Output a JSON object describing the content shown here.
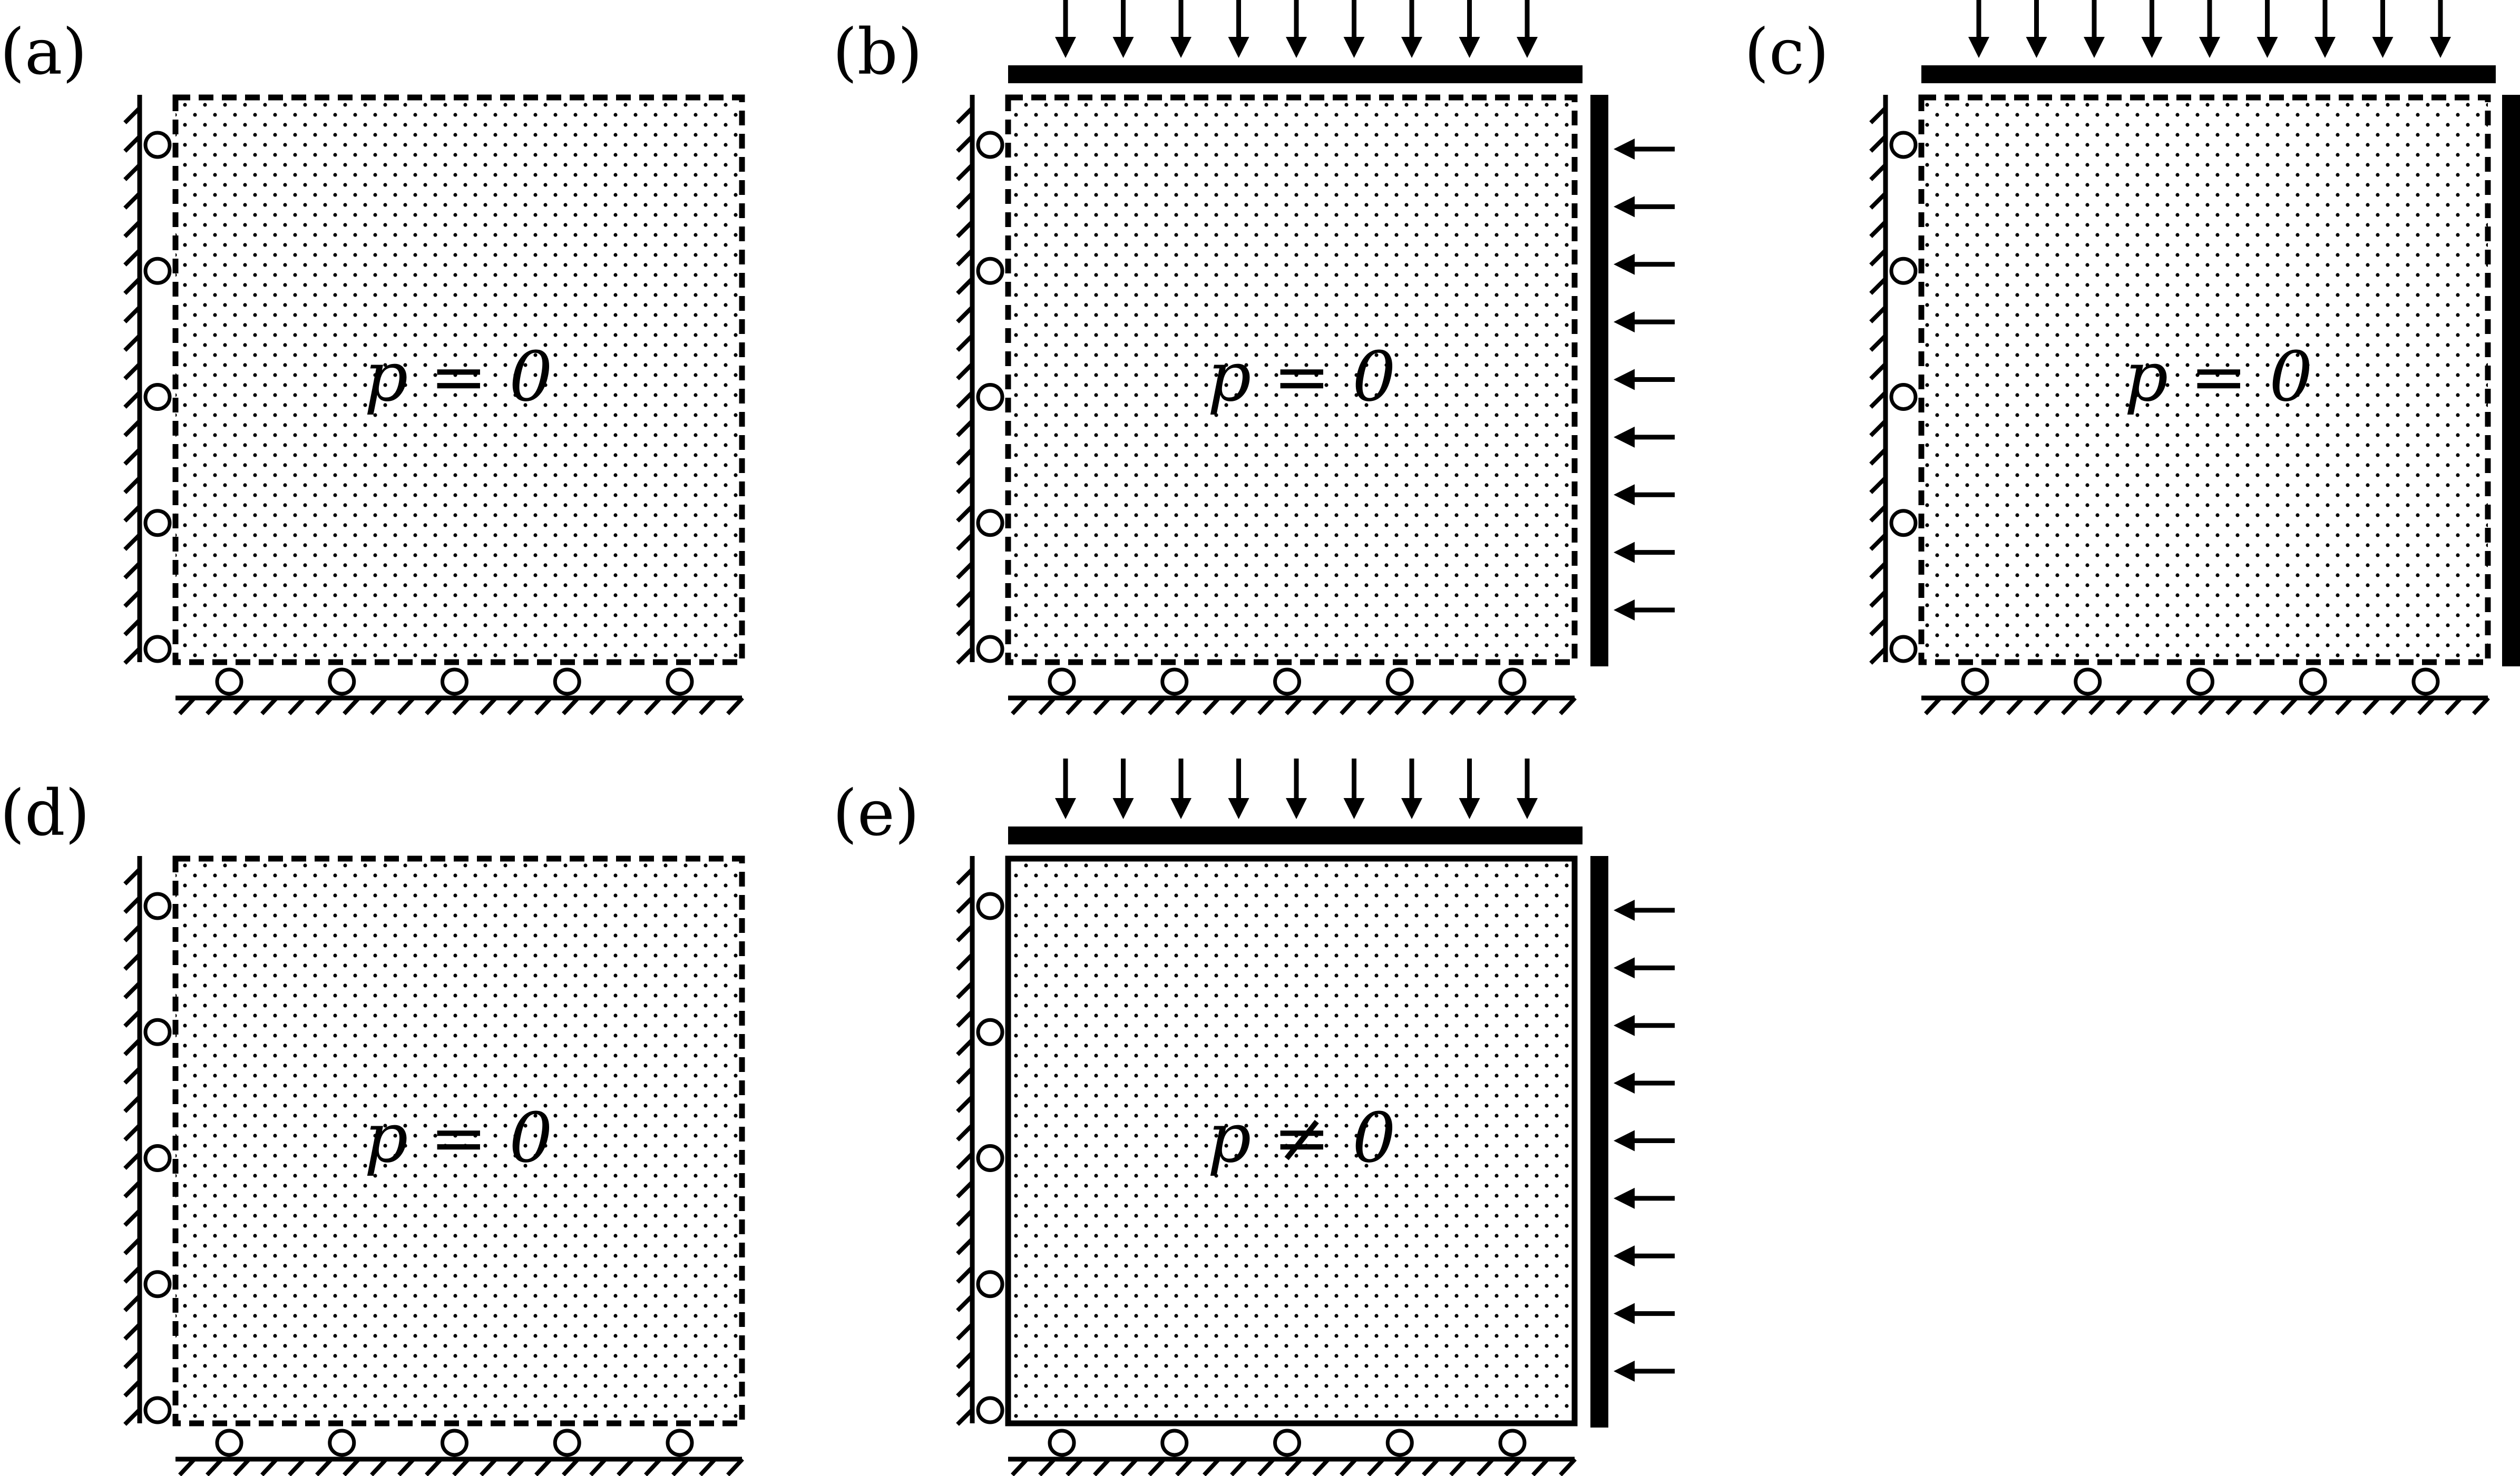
{
  "figure": {
    "panels": [
      {
        "id": "a",
        "label": "(a)",
        "pressure_text": "p = 0",
        "top_load": false,
        "right_load": false,
        "right_rigid_wall": false,
        "boundary": "dashed"
      },
      {
        "id": "b",
        "label": "(b)",
        "pressure_text": "p = 0",
        "top_load": true,
        "right_load": true,
        "right_rigid_wall": true,
        "boundary": "dashed"
      },
      {
        "id": "c",
        "label": "(c)",
        "pressure_text": "p = 0",
        "top_load": true,
        "right_load": false,
        "right_rigid_wall": true,
        "boundary": "dashed"
      },
      {
        "id": "d",
        "label": "(d)",
        "pressure_text": "p = 0",
        "top_load": false,
        "right_load": false,
        "right_rigid_wall": false,
        "boundary": "dashed"
      },
      {
        "id": "e",
        "label": "(e)",
        "pressure_text": "p ≠ 0",
        "top_load": true,
        "right_load": true,
        "right_rigid_wall": true,
        "boundary": "solid"
      }
    ],
    "colors": {
      "ink": "#000000",
      "background": "#ffffff"
    }
  }
}
